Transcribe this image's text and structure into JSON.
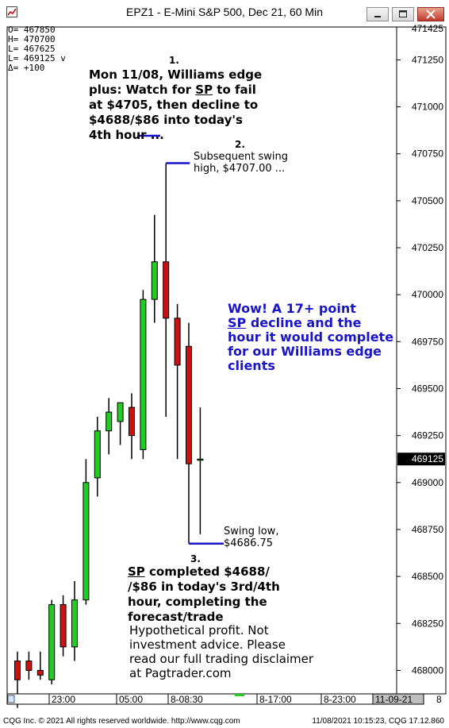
{
  "window": {
    "title": "EPZ1 - E-Mini S&P 500, Dec 21, 60 Min"
  },
  "ohlc_panel": {
    "rows": [
      {
        "label": "O=",
        "value": "467850",
        "suffix": ""
      },
      {
        "label": "H=",
        "value": "470700",
        "suffix": ""
      },
      {
        "label": "L=",
        "value": "467625",
        "suffix": ""
      },
      {
        "label": "L=",
        "value": "469125",
        "suffix": "v"
      },
      {
        "label": "Δ=",
        "value": "+100",
        "suffix": ""
      }
    ]
  },
  "annotations": {
    "step1_num": "1.",
    "step1_text": "Mon 11/08, Williams edge plus: Watch for SP to fail at $4705, then decline to $4688/$86 into today's 4th hour ...",
    "step2_num": "2.",
    "step2_text": "Subsequent swing high, $4707.00 ...",
    "blue_text": "Wow! A 17+ point SP decline and the hour it would complete for our Williams edge clients",
    "low_text": "Swing low, $4686.75",
    "step3_num": "3.",
    "step3_text": "SP completed $4688/ /$86 in today's 3rd/4th hour, completing the forecast/trade",
    "disclaimer": "Hypothetical profit. Not investment advice. Please read our full trading disclaimer at Pagtrader.com"
  },
  "colors": {
    "up": "#22cc22",
    "down": "#cc1111",
    "accent": "#1a14c8",
    "last_price_bg": "#000000"
  },
  "chart_data": {
    "type": "candlestick",
    "title": "EPZ1 - E-Mini S&P 500, Dec 21, 60 Min",
    "ylim": [
      4678.75,
      4714.25
    ],
    "yticks": [
      4680.0,
      4682.5,
      4685.0,
      4687.5,
      4690.0,
      4692.5,
      4695.0,
      4697.5,
      4700.0,
      4702.5,
      4705.0,
      4707.5,
      4710.0,
      4712.5
    ],
    "ytick_labels": [
      "468000",
      "468250",
      "468500",
      "468750",
      "469000",
      "469250",
      "469500",
      "469750",
      "470000",
      "470250",
      "470500",
      "470750",
      "471000",
      "471250"
    ],
    "top_label": "471425",
    "last_price": "469125",
    "last_price_value": 4691.25,
    "xtick_labels": [
      "23:00",
      "05:00",
      "8-08:30",
      "8-17:00",
      "8-23:00",
      "11-09-21",
      "8"
    ],
    "candles": [
      {
        "o": 4680.5,
        "h": 4681.0,
        "l": 4678.0,
        "c": 4679.5
      },
      {
        "o": 4680.5,
        "h": 4681.0,
        "l": 4679.5,
        "c": 4680.0
      },
      {
        "o": 4680.0,
        "h": 4681.0,
        "l": 4679.5,
        "c": 4679.75
      },
      {
        "o": 4679.5,
        "h": 4683.75,
        "l": 4679.25,
        "c": 4683.5
      },
      {
        "o": 4683.5,
        "h": 4684.0,
        "l": 4680.75,
        "c": 4681.25
      },
      {
        "o": 4681.25,
        "h": 4684.75,
        "l": 4680.5,
        "c": 4683.75
      },
      {
        "o": 4683.75,
        "h": 4691.25,
        "l": 4683.5,
        "c": 4690.0
      },
      {
        "o": 4690.25,
        "h": 4693.5,
        "l": 4689.25,
        "c": 4692.75
      },
      {
        "o": 4692.75,
        "h": 4694.5,
        "l": 4691.5,
        "c": 4693.75
      },
      {
        "o": 4693.25,
        "h": 4694.25,
        "l": 4692.0,
        "c": 4694.25
      },
      {
        "o": 4694.0,
        "h": 4694.75,
        "l": 4691.25,
        "c": 4692.5
      },
      {
        "o": 4691.75,
        "h": 4700.25,
        "l": 4691.25,
        "c": 4699.75
      },
      {
        "o": 4699.75,
        "h": 4704.25,
        "l": 4698.5,
        "c": 4701.75
      },
      {
        "o": 4701.75,
        "h": 4707.0,
        "l": 4693.5,
        "c": 4698.75
      },
      {
        "o": 4698.75,
        "h": 4699.5,
        "l": 4691.25,
        "c": 4696.25
      },
      {
        "o": 4697.25,
        "h": 4698.5,
        "l": 4686.75,
        "c": 4691.0
      },
      {
        "o": 4691.25,
        "h": 4694.0,
        "l": 4687.25,
        "c": 4691.25
      }
    ]
  }
}
